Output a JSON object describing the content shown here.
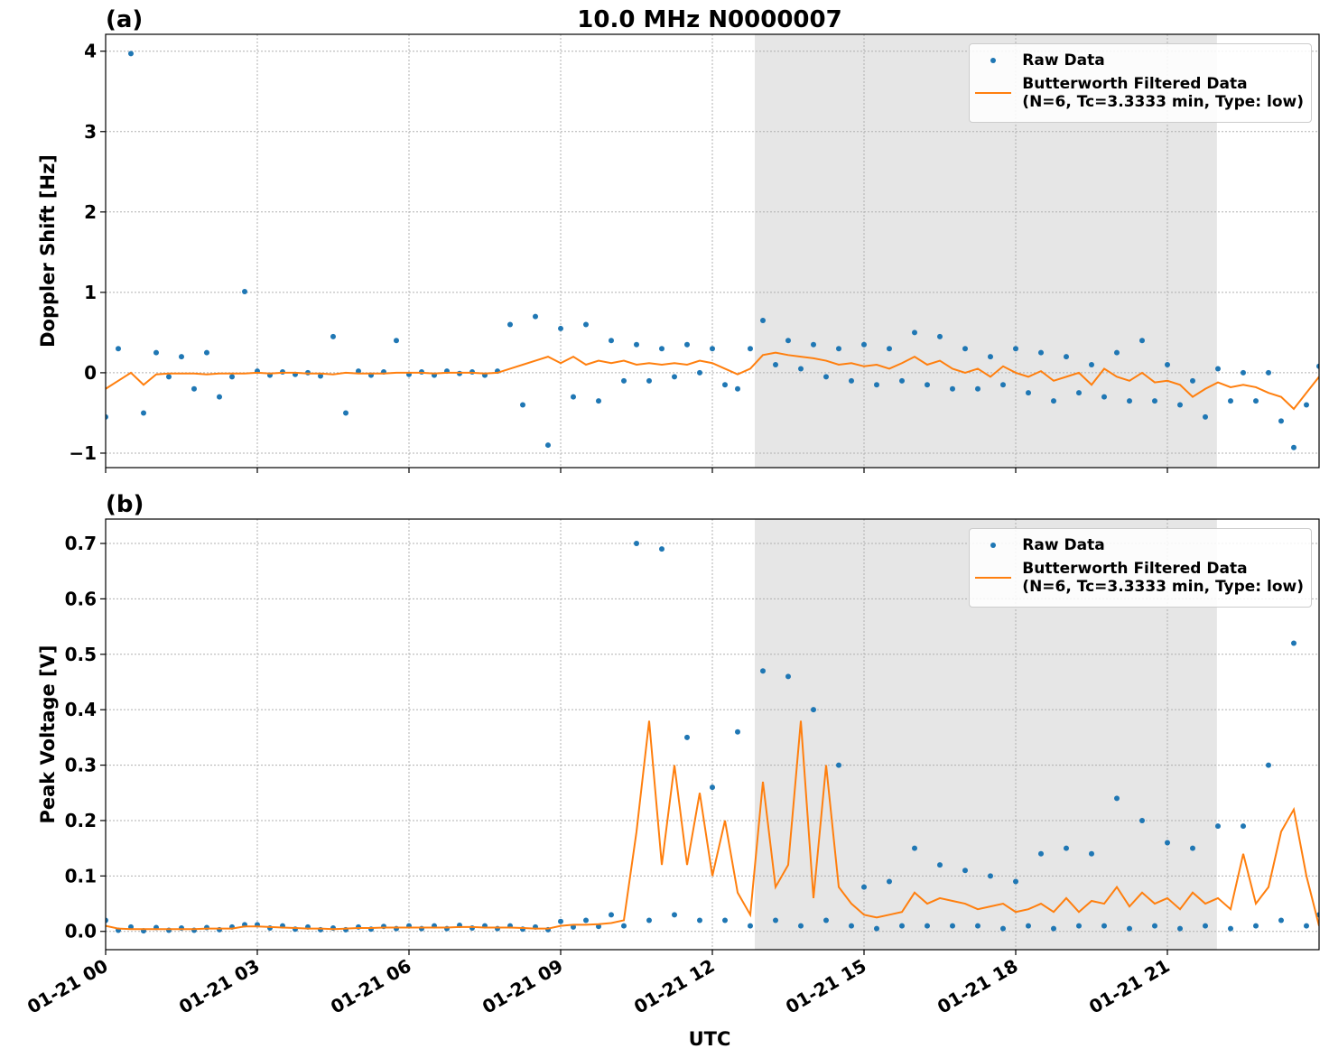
{
  "chart_data": [
    {
      "type": "line",
      "title": "10.0 MHz N0000007",
      "panel_label": "(a)",
      "y_label": "Doppler Shift [Hz]",
      "xlim": [
        0,
        24
      ],
      "ylim": [
        -1.18,
        4.21
      ],
      "xticks": [
        0,
        3,
        6,
        9,
        12,
        15,
        18,
        21
      ],
      "yticks": [
        {
          "value": -1,
          "label": "−1"
        },
        0,
        1,
        2,
        3,
        4
      ],
      "grid": true,
      "legend": "upper right",
      "shaded_span": [
        12.84,
        21.98
      ],
      "shade_color": "#e6e6e6",
      "x": [
        0,
        0.25,
        0.5,
        0.75,
        1,
        1.25,
        1.5,
        1.75,
        2,
        2.25,
        2.5,
        2.75,
        3,
        3.25,
        3.5,
        3.75,
        4,
        4.25,
        4.5,
        4.75,
        5,
        5.25,
        5.5,
        5.75,
        6,
        6.25,
        6.5,
        6.75,
        7,
        7.25,
        7.5,
        7.75,
        8,
        8.25,
        8.5,
        8.75,
        9,
        9.25,
        9.5,
        9.75,
        10,
        10.25,
        10.5,
        10.75,
        11,
        11.25,
        11.5,
        11.75,
        12,
        12.25,
        12.5,
        12.75,
        13,
        13.25,
        13.5,
        13.75,
        14,
        14.25,
        14.5,
        14.75,
        15,
        15.25,
        15.5,
        15.75,
        16,
        16.25,
        16.5,
        16.75,
        17,
        17.25,
        17.5,
        17.75,
        18,
        18.25,
        18.5,
        18.75,
        19,
        19.25,
        19.5,
        19.75,
        20,
        20.25,
        20.5,
        20.75,
        21,
        21.25,
        21.5,
        21.75,
        22,
        22.25,
        22.5,
        22.75,
        23,
        23.25,
        23.5,
        23.75,
        24
      ],
      "series": [
        {
          "name": "Raw Data",
          "style": "markers",
          "color": "#1f77b4",
          "values": [
            -0.55,
            0.3,
            3.97,
            -0.5,
            0.25,
            -0.05,
            0.2,
            -0.2,
            0.25,
            -0.3,
            -0.05,
            1.01,
            0.02,
            -0.03,
            0.01,
            -0.02,
            0.0,
            -0.04,
            0.45,
            -0.5,
            0.02,
            -0.03,
            0.01,
            0.4,
            -0.02,
            0.01,
            -0.03,
            0.02,
            -0.01,
            0.01,
            -0.03,
            0.02,
            0.6,
            -0.4,
            0.7,
            -0.9,
            0.55,
            -0.3,
            0.6,
            -0.35,
            0.4,
            -0.1,
            0.35,
            -0.1,
            0.3,
            -0.05,
            0.35,
            0.0,
            0.3,
            -0.15,
            -0.2,
            0.3,
            0.65,
            0.1,
            0.4,
            0.05,
            0.35,
            -0.05,
            0.3,
            -0.1,
            0.35,
            -0.15,
            0.3,
            -0.1,
            0.5,
            -0.15,
            0.45,
            -0.2,
            0.3,
            -0.2,
            0.2,
            -0.15,
            0.3,
            -0.25,
            0.25,
            -0.35,
            0.2,
            -0.25,
            0.1,
            -0.3,
            0.25,
            -0.35,
            0.4,
            -0.35,
            0.1,
            -0.4,
            -0.1,
            -0.55,
            0.05,
            -0.35,
            0.0,
            -0.35,
            0.0,
            -0.6,
            -0.93,
            -0.4,
            0.08
          ]
        },
        {
          "name": "Butterworth Filtered Data\n(N=6, Tc=3.3333 min, Type: low)",
          "style": "line",
          "color": "#ff7f0e",
          "values": [
            -0.2,
            -0.1,
            0.0,
            -0.15,
            -0.02,
            -0.01,
            -0.01,
            -0.01,
            -0.02,
            -0.01,
            -0.01,
            -0.01,
            0.0,
            -0.01,
            0.0,
            0.0,
            -0.01,
            -0.01,
            -0.02,
            0.0,
            -0.01,
            -0.01,
            -0.01,
            0.0,
            0.0,
            0.0,
            -0.01,
            0.0,
            0.0,
            0.0,
            -0.01,
            0.0,
            0.05,
            0.1,
            0.15,
            0.2,
            0.12,
            0.2,
            0.1,
            0.15,
            0.12,
            0.15,
            0.1,
            0.12,
            0.1,
            0.12,
            0.1,
            0.15,
            0.12,
            0.05,
            -0.02,
            0.05,
            0.22,
            0.25,
            0.22,
            0.2,
            0.18,
            0.15,
            0.1,
            0.12,
            0.08,
            0.1,
            0.05,
            0.12,
            0.2,
            0.1,
            0.15,
            0.05,
            0.0,
            0.05,
            -0.05,
            0.08,
            0.0,
            -0.05,
            0.02,
            -0.1,
            -0.05,
            0.0,
            -0.15,
            0.05,
            -0.05,
            -0.1,
            0.0,
            -0.12,
            -0.1,
            -0.15,
            -0.3,
            -0.2,
            -0.12,
            -0.18,
            -0.15,
            -0.18,
            -0.25,
            -0.3,
            -0.45,
            -0.25,
            -0.05
          ]
        }
      ]
    },
    {
      "type": "line",
      "panel_label": "(b)",
      "y_label": "Peak Voltage [V]",
      "x_label": "UTC",
      "xlim": [
        0,
        24
      ],
      "ylim": [
        -0.033,
        0.744
      ],
      "xticks": [
        {
          "value": 0,
          "label": "01-21 00"
        },
        {
          "value": 3,
          "label": "01-21 03"
        },
        {
          "value": 6,
          "label": "01-21 06"
        },
        {
          "value": 9,
          "label": "01-21 09"
        },
        {
          "value": 12,
          "label": "01-21 12"
        },
        {
          "value": 15,
          "label": "01-21 15"
        },
        {
          "value": 18,
          "label": "01-21 18"
        },
        {
          "value": 21,
          "label": "01-21 21"
        }
      ],
      "yticks": [
        {
          "value": 0,
          "label": "0.0"
        },
        0.1,
        0.2,
        0.3,
        0.4,
        0.5,
        0.6,
        0.7
      ],
      "grid": true,
      "legend": "upper right",
      "shaded_span": [
        12.84,
        21.98
      ],
      "shade_color": "#e6e6e6",
      "x": [
        0,
        0.25,
        0.5,
        0.75,
        1,
        1.25,
        1.5,
        1.75,
        2,
        2.25,
        2.5,
        2.75,
        3,
        3.25,
        3.5,
        3.75,
        4,
        4.25,
        4.5,
        4.75,
        5,
        5.25,
        5.5,
        5.75,
        6,
        6.25,
        6.5,
        6.75,
        7,
        7.25,
        7.5,
        7.75,
        8,
        8.25,
        8.5,
        8.75,
        9,
        9.25,
        9.5,
        9.75,
        10,
        10.25,
        10.5,
        10.75,
        11,
        11.25,
        11.5,
        11.75,
        12,
        12.25,
        12.5,
        12.75,
        13,
        13.25,
        13.5,
        13.75,
        14,
        14.25,
        14.5,
        14.75,
        15,
        15.25,
        15.5,
        15.75,
        16,
        16.25,
        16.5,
        16.75,
        17,
        17.25,
        17.5,
        17.75,
        18,
        18.25,
        18.5,
        18.75,
        19,
        19.25,
        19.5,
        19.75,
        20,
        20.25,
        20.5,
        20.75,
        21,
        21.25,
        21.5,
        21.75,
        22,
        22.25,
        22.5,
        22.75,
        23,
        23.25,
        23.5,
        23.75,
        24
      ],
      "series": [
        {
          "name": "Raw Data",
          "style": "markers",
          "color": "#1f77b4",
          "values": [
            0.02,
            0.002,
            0.008,
            0.001,
            0.007,
            0.002,
            0.006,
            0.002,
            0.007,
            0.003,
            0.008,
            0.012,
            0.012,
            0.006,
            0.01,
            0.004,
            0.008,
            0.003,
            0.006,
            0.003,
            0.008,
            0.004,
            0.009,
            0.005,
            0.01,
            0.005,
            0.01,
            0.005,
            0.011,
            0.006,
            0.01,
            0.005,
            0.01,
            0.004,
            0.008,
            0.003,
            0.018,
            0.008,
            0.02,
            0.009,
            0.03,
            0.01,
            0.7,
            0.02,
            0.69,
            0.03,
            0.35,
            0.02,
            0.26,
            0.02,
            0.36,
            0.01,
            0.47,
            0.02,
            0.46,
            0.01,
            0.4,
            0.02,
            0.3,
            0.01,
            0.08,
            0.005,
            0.09,
            0.01,
            0.15,
            0.01,
            0.12,
            0.01,
            0.11,
            0.01,
            0.1,
            0.005,
            0.09,
            0.01,
            0.14,
            0.005,
            0.15,
            0.01,
            0.14,
            0.01,
            0.24,
            0.005,
            0.2,
            0.01,
            0.16,
            0.005,
            0.15,
            0.01,
            0.19,
            0.005,
            0.19,
            0.01,
            0.3,
            0.02,
            0.52,
            0.01,
            0.03
          ]
        },
        {
          "name": "Butterworth Filtered Data\n(N=6, Tc=3.3333 min, Type: low)",
          "style": "line",
          "color": "#ff7f0e",
          "values": [
            0.01,
            0.005,
            0.004,
            0.004,
            0.004,
            0.004,
            0.004,
            0.004,
            0.005,
            0.005,
            0.005,
            0.009,
            0.009,
            0.008,
            0.007,
            0.006,
            0.005,
            0.005,
            0.004,
            0.005,
            0.006,
            0.006,
            0.007,
            0.007,
            0.007,
            0.007,
            0.007,
            0.007,
            0.008,
            0.008,
            0.007,
            0.007,
            0.007,
            0.006,
            0.005,
            0.005,
            0.01,
            0.012,
            0.012,
            0.013,
            0.015,
            0.02,
            0.18,
            0.38,
            0.12,
            0.3,
            0.12,
            0.25,
            0.1,
            0.2,
            0.07,
            0.03,
            0.27,
            0.08,
            0.12,
            0.38,
            0.06,
            0.3,
            0.08,
            0.05,
            0.03,
            0.025,
            0.03,
            0.035,
            0.07,
            0.05,
            0.06,
            0.055,
            0.05,
            0.04,
            0.045,
            0.05,
            0.035,
            0.04,
            0.05,
            0.035,
            0.06,
            0.035,
            0.055,
            0.05,
            0.08,
            0.045,
            0.07,
            0.05,
            0.06,
            0.04,
            0.07,
            0.05,
            0.06,
            0.04,
            0.14,
            0.05,
            0.08,
            0.18,
            0.22,
            0.1,
            0.01
          ]
        }
      ]
    }
  ]
}
